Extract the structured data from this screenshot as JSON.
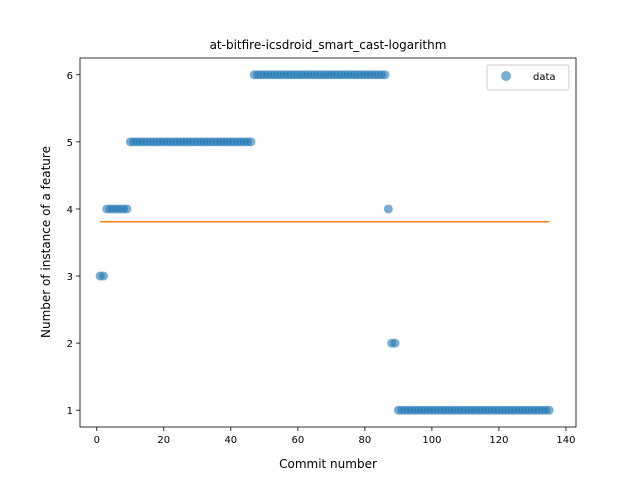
{
  "chart_data": {
    "type": "scatter",
    "title": "at-bitfire-icsdroid_smart_cast-logarithm",
    "xlabel": "Commit number",
    "ylabel": "Number of instance of a feature",
    "xlim": [
      -5,
      143
    ],
    "ylim": [
      0.75,
      6.25
    ],
    "xticks": [
      0,
      20,
      40,
      60,
      80,
      100,
      120,
      140
    ],
    "yticks": [
      1,
      2,
      3,
      4,
      5,
      6
    ],
    "grid": false,
    "legend": {
      "position": "upper right",
      "entries": [
        "data"
      ]
    },
    "series": [
      {
        "name": "data",
        "kind": "scatter",
        "color": "#1f77b4",
        "points": [
          [
            1,
            3
          ],
          [
            2,
            3
          ],
          [
            3,
            4
          ],
          [
            4,
            4
          ],
          [
            5,
            4
          ],
          [
            6,
            4
          ],
          [
            7,
            4
          ],
          [
            8,
            4
          ],
          [
            9,
            4
          ],
          [
            10,
            5
          ],
          [
            11,
            5
          ],
          [
            12,
            5
          ],
          [
            13,
            5
          ],
          [
            14,
            5
          ],
          [
            15,
            5
          ],
          [
            16,
            5
          ],
          [
            17,
            5
          ],
          [
            18,
            5
          ],
          [
            19,
            5
          ],
          [
            20,
            5
          ],
          [
            21,
            5
          ],
          [
            22,
            5
          ],
          [
            23,
            5
          ],
          [
            24,
            5
          ],
          [
            25,
            5
          ],
          [
            26,
            5
          ],
          [
            27,
            5
          ],
          [
            28,
            5
          ],
          [
            29,
            5
          ],
          [
            30,
            5
          ],
          [
            31,
            5
          ],
          [
            32,
            5
          ],
          [
            33,
            5
          ],
          [
            34,
            5
          ],
          [
            35,
            5
          ],
          [
            36,
            5
          ],
          [
            37,
            5
          ],
          [
            38,
            5
          ],
          [
            39,
            5
          ],
          [
            40,
            5
          ],
          [
            41,
            5
          ],
          [
            42,
            5
          ],
          [
            43,
            5
          ],
          [
            44,
            5
          ],
          [
            45,
            5
          ],
          [
            46,
            5
          ],
          [
            47,
            6
          ],
          [
            48,
            6
          ],
          [
            49,
            6
          ],
          [
            50,
            6
          ],
          [
            51,
            6
          ],
          [
            52,
            6
          ],
          [
            53,
            6
          ],
          [
            54,
            6
          ],
          [
            55,
            6
          ],
          [
            56,
            6
          ],
          [
            57,
            6
          ],
          [
            58,
            6
          ],
          [
            59,
            6
          ],
          [
            60,
            6
          ],
          [
            61,
            6
          ],
          [
            62,
            6
          ],
          [
            63,
            6
          ],
          [
            64,
            6
          ],
          [
            65,
            6
          ],
          [
            66,
            6
          ],
          [
            67,
            6
          ],
          [
            68,
            6
          ],
          [
            69,
            6
          ],
          [
            70,
            6
          ],
          [
            71,
            6
          ],
          [
            72,
            6
          ],
          [
            73,
            6
          ],
          [
            74,
            6
          ],
          [
            75,
            6
          ],
          [
            76,
            6
          ],
          [
            77,
            6
          ],
          [
            78,
            6
          ],
          [
            79,
            6
          ],
          [
            80,
            6
          ],
          [
            81,
            6
          ],
          [
            82,
            6
          ],
          [
            83,
            6
          ],
          [
            84,
            6
          ],
          [
            85,
            6
          ],
          [
            86,
            6
          ],
          [
            87,
            4
          ],
          [
            88,
            2
          ],
          [
            89,
            2
          ],
          [
            90,
            1
          ],
          [
            91,
            1
          ],
          [
            92,
            1
          ],
          [
            93,
            1
          ],
          [
            94,
            1
          ],
          [
            95,
            1
          ],
          [
            96,
            1
          ],
          [
            97,
            1
          ],
          [
            98,
            1
          ],
          [
            99,
            1
          ],
          [
            100,
            1
          ],
          [
            101,
            1
          ],
          [
            102,
            1
          ],
          [
            103,
            1
          ],
          [
            104,
            1
          ],
          [
            105,
            1
          ],
          [
            106,
            1
          ],
          [
            107,
            1
          ],
          [
            108,
            1
          ],
          [
            109,
            1
          ],
          [
            110,
            1
          ],
          [
            111,
            1
          ],
          [
            112,
            1
          ],
          [
            113,
            1
          ],
          [
            114,
            1
          ],
          [
            115,
            1
          ],
          [
            116,
            1
          ],
          [
            117,
            1
          ],
          [
            118,
            1
          ],
          [
            119,
            1
          ],
          [
            120,
            1
          ],
          [
            121,
            1
          ],
          [
            122,
            1
          ],
          [
            123,
            1
          ],
          [
            124,
            1
          ],
          [
            125,
            1
          ],
          [
            126,
            1
          ],
          [
            127,
            1
          ],
          [
            128,
            1
          ],
          [
            129,
            1
          ],
          [
            130,
            1
          ],
          [
            131,
            1
          ],
          [
            132,
            1
          ],
          [
            133,
            1
          ],
          [
            134,
            1
          ],
          [
            135,
            1
          ]
        ]
      },
      {
        "kind": "line",
        "color": "#ff7f0e",
        "points": [
          [
            1,
            3.81
          ],
          [
            135,
            3.81
          ]
        ]
      }
    ]
  }
}
